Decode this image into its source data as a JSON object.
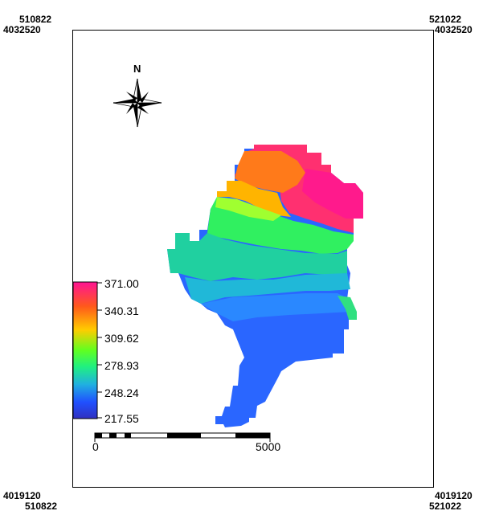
{
  "corners": {
    "top_left_x": "510822",
    "top_left_y": "4032520",
    "top_right_x": "521022",
    "top_right_y": "4032520",
    "bottom_left_y": "4019120",
    "bottom_left_x": "510822",
    "bottom_right_y": "4019120",
    "bottom_right_x": "521022"
  },
  "north_arrow": {
    "label": "N",
    "icon": "north-arrow-compass-icon"
  },
  "legend": {
    "values": [
      "371.00",
      "340.31",
      "309.62",
      "278.93",
      "248.24",
      "217.55"
    ],
    "colors": [
      "#ff1493",
      "#ff6a1a",
      "#ffe000",
      "#20ff20",
      "#20c0c0",
      "#2050ff",
      "#3030c0"
    ]
  },
  "scale_bar": {
    "start_label": "0",
    "end_label": "5000"
  }
}
